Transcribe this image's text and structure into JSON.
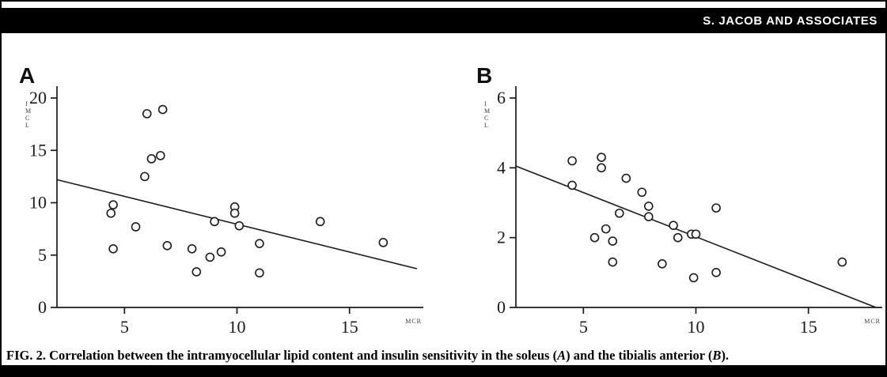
{
  "header": {
    "running_title": "S. JACOB AND ASSOCIATES"
  },
  "caption": {
    "prefix": "FIG. 2. Correlation between the intramyocellular lipid content and insulin sensitivity in the soleus (",
    "panel_a": "A",
    "mid": ") and the tibialis anterior (",
    "panel_b": "B",
    "suffix": ")."
  },
  "colors": {
    "header_bg": "#000000",
    "header_text": "#ffffff",
    "plot_stroke": "#1a1a1a"
  },
  "chart_data": [
    {
      "type": "scatter",
      "panel": "A",
      "title": "",
      "xlabel": "MCR",
      "ylabel": "IMCL",
      "xlim": [
        2,
        18
      ],
      "ylim": [
        0,
        20
      ],
      "xticks": [
        5,
        10,
        15
      ],
      "yticks": [
        0,
        5,
        10,
        15,
        20
      ],
      "grid": false,
      "marker": "open-circle",
      "points": [
        [
          4.4,
          9.0
        ],
        [
          4.5,
          9.8
        ],
        [
          4.5,
          5.6
        ],
        [
          5.5,
          7.7
        ],
        [
          5.9,
          12.5
        ],
        [
          6.0,
          18.5
        ],
        [
          6.7,
          18.9
        ],
        [
          6.2,
          14.2
        ],
        [
          6.6,
          14.5
        ],
        [
          6.9,
          5.9
        ],
        [
          8.0,
          5.6
        ],
        [
          8.2,
          3.4
        ],
        [
          8.8,
          4.8
        ],
        [
          9.0,
          8.2
        ],
        [
          9.3,
          5.3
        ],
        [
          9.9,
          9.6
        ],
        [
          9.9,
          9.0
        ],
        [
          10.1,
          7.8
        ],
        [
          11.0,
          6.1
        ],
        [
          11.0,
          3.3
        ],
        [
          13.7,
          8.2
        ],
        [
          16.5,
          6.2
        ]
      ],
      "regression_line": {
        "x": [
          2,
          18
        ],
        "y": [
          12.2,
          3.7
        ]
      }
    },
    {
      "type": "scatter",
      "panel": "B",
      "title": "",
      "xlabel": "MCR",
      "ylabel": "IMCL",
      "xlim": [
        2,
        18
      ],
      "ylim": [
        0,
        6
      ],
      "xticks": [
        5,
        10,
        15
      ],
      "yticks": [
        0,
        2,
        4,
        6
      ],
      "grid": false,
      "marker": "open-circle",
      "points": [
        [
          4.5,
          4.2
        ],
        [
          4.5,
          3.5
        ],
        [
          5.8,
          4.3
        ],
        [
          5.8,
          4.0
        ],
        [
          5.5,
          2.0
        ],
        [
          6.0,
          2.25
        ],
        [
          6.3,
          1.9
        ],
        [
          6.3,
          1.3
        ],
        [
          6.6,
          2.7
        ],
        [
          6.9,
          3.7
        ],
        [
          7.6,
          3.3
        ],
        [
          7.9,
          2.9
        ],
        [
          7.9,
          2.6
        ],
        [
          8.5,
          1.25
        ],
        [
          9.0,
          2.35
        ],
        [
          9.2,
          2.0
        ],
        [
          9.8,
          2.1
        ],
        [
          10.0,
          2.1
        ],
        [
          9.9,
          0.85
        ],
        [
          10.9,
          2.85
        ],
        [
          10.9,
          1.0
        ],
        [
          16.5,
          1.3
        ]
      ],
      "regression_line": {
        "x": [
          2,
          18
        ],
        "y": [
          4.05,
          0.0
        ]
      }
    }
  ]
}
